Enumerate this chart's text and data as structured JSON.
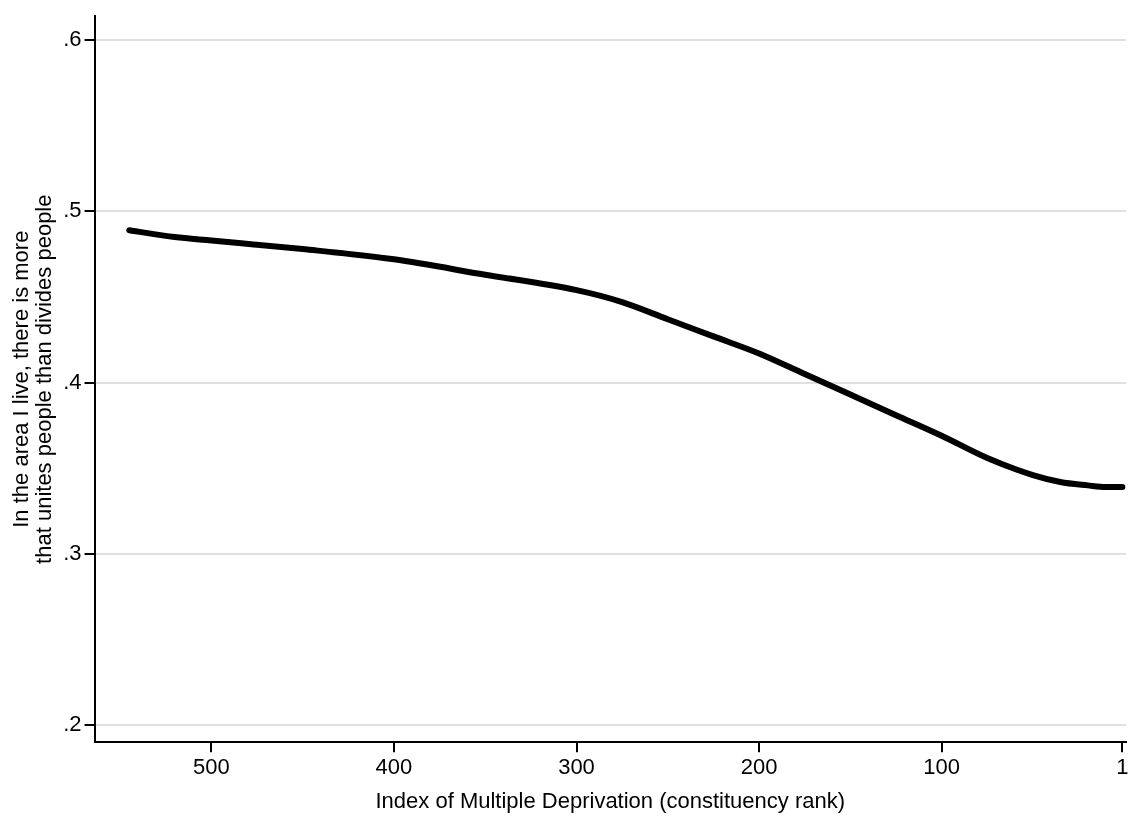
{
  "chart_data": {
    "type": "line",
    "xlabel": "Index of Multiple Deprivation (constituency rank)",
    "ylabel": "In the area I live, there is more\nthat unites people than divides people",
    "x": [
      545,
      520,
      500,
      450,
      400,
      350,
      300,
      275,
      250,
      225,
      200,
      175,
      150,
      125,
      100,
      75,
      50,
      35,
      20,
      10,
      1
    ],
    "series": [
      {
        "color": "#000000",
        "values": [
          0.489,
          0.485,
          0.483,
          0.478,
          0.472,
          0.463,
          0.454,
          0.447,
          0.437,
          0.427,
          0.417,
          0.405,
          0.393,
          0.381,
          0.369,
          0.356,
          0.346,
          0.342,
          0.34,
          0.339,
          0.339
        ]
      }
    ],
    "xlim": [
      564,
      -1
    ],
    "xticks": [
      500,
      400,
      300,
      200,
      100,
      1
    ],
    "ylim": [
      0.19,
      0.614
    ],
    "yticks": [
      {
        "value": 0.2,
        "label": ".2"
      },
      {
        "value": 0.3,
        "label": ".3"
      },
      {
        "value": 0.4,
        "label": ".4"
      },
      {
        "value": 0.5,
        "label": ".5"
      },
      {
        "value": 0.6,
        "label": ".6"
      }
    ],
    "grid": "y",
    "legend": false,
    "marker": "none",
    "line_style": "solid"
  }
}
